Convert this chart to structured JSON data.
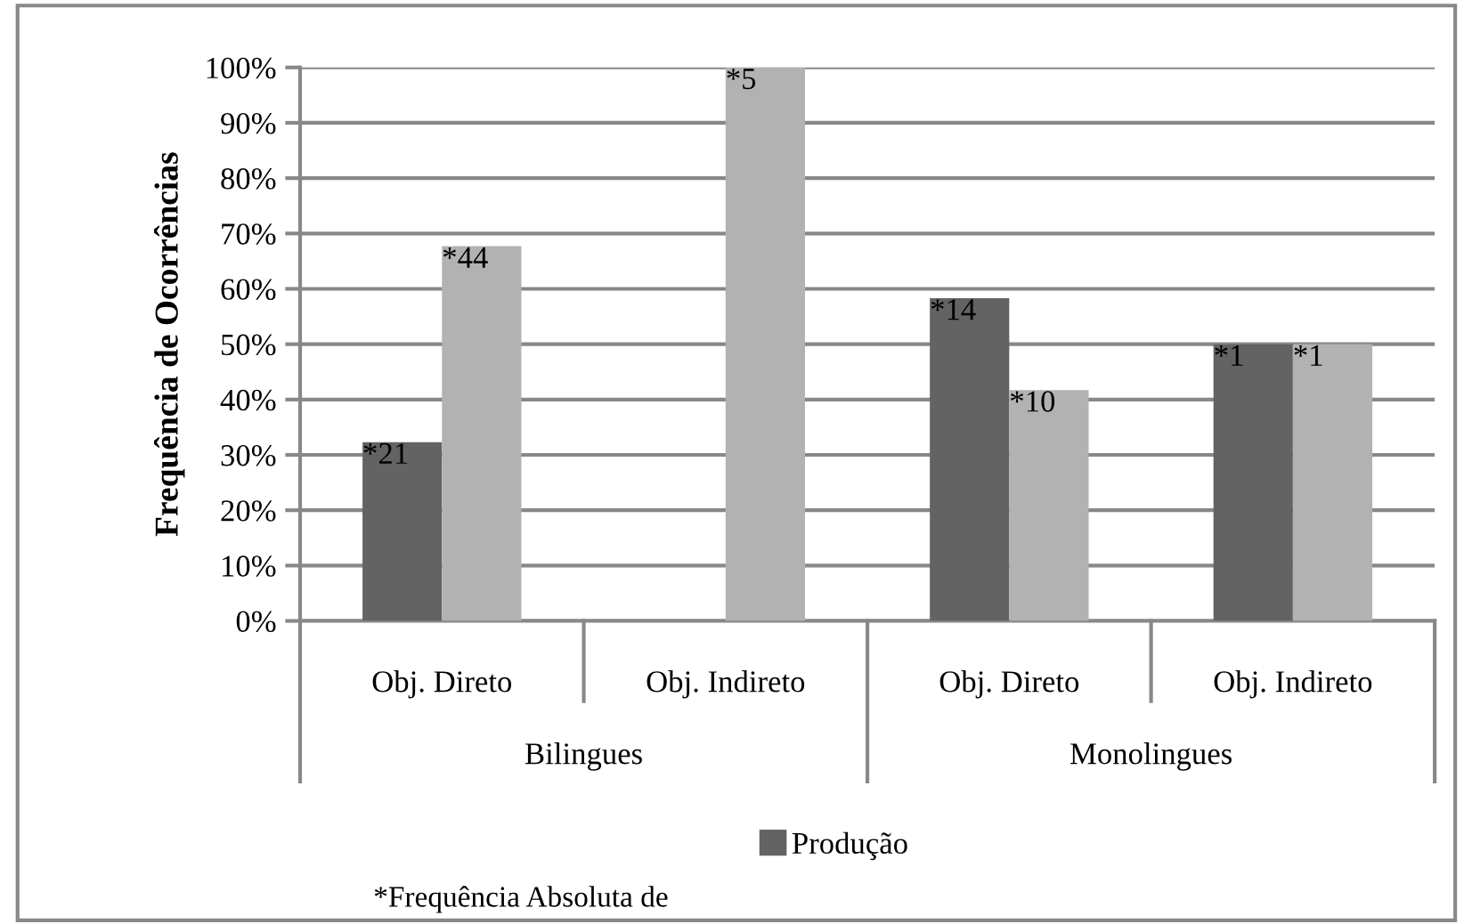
{
  "chart_data": {
    "type": "bar",
    "ylabel": "Frequência de Ocorrências",
    "categories": [
      "Obj. Direto",
      "Obj. Indireto",
      "Obj. Direto",
      "Obj. Indireto"
    ],
    "series": [
      {
        "name": "Produção",
        "color": "#636363",
        "values": [
          32.3,
          null,
          58.3,
          50
        ]
      },
      {
        "color": "#b2b2b2",
        "values": [
          67.7,
          100,
          41.7,
          50
        ]
      }
    ],
    "ylim": [
      0,
      100
    ],
    "yticks": [
      {
        "value": 0,
        "label": "0%"
      },
      {
        "value": 10,
        "label": "10%"
      },
      {
        "value": 20,
        "label": "20%"
      },
      {
        "value": 30,
        "label": "30%"
      },
      {
        "value": 40,
        "label": "40%"
      },
      {
        "value": 50,
        "label": "50%"
      },
      {
        "value": 60,
        "label": "60%"
      },
      {
        "value": 70,
        "label": "70%"
      },
      {
        "value": 80,
        "label": "80%"
      },
      {
        "value": 90,
        "label": "90%"
      },
      {
        "value": 100,
        "label": "100%"
      }
    ],
    "grid": "y",
    "legend": "bottom",
    "annotations": [
      "*21",
      "*14",
      "*1",
      "*44",
      "*5",
      "*10",
      "*1",
      "Bilingues",
      "Monolingues",
      "*Frequência Absoluta de"
    ]
  }
}
